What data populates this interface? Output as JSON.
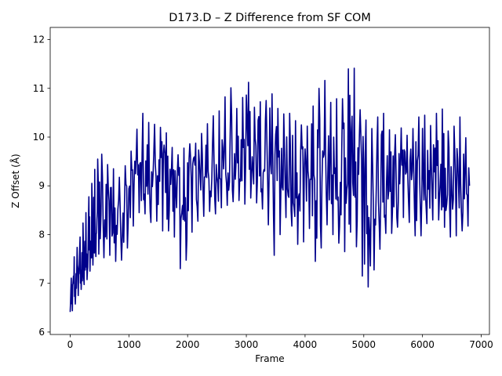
{
  "chart_data": {
    "type": "line",
    "title": "D173.D – Z Difference from SF COM",
    "xlabel": "Frame",
    "ylabel": "Z Offset (Å)",
    "xlim": [
      -340,
      7140
    ],
    "ylim": [
      5.95,
      12.25
    ],
    "xticks": [
      0,
      1000,
      2000,
      3000,
      4000,
      5000,
      6000,
      7000
    ],
    "yticks": [
      6,
      7,
      8,
      9,
      10,
      11,
      12
    ],
    "grid": false,
    "legend": "none",
    "line_color": "#00008b",
    "series": [
      {
        "name": "",
        "x": [
          0,
          50,
          100,
          150,
          200,
          250,
          300,
          350,
          400,
          450,
          500,
          600,
          700,
          800,
          900,
          1000,
          1100,
          1200,
          1300,
          1400,
          1500,
          1600,
          1700,
          1800,
          1900,
          2000,
          2100,
          2200,
          2300,
          2400,
          2500,
          2600,
          2700,
          2800,
          2900,
          3000,
          3100,
          3200,
          3300,
          3400,
          3500,
          3600,
          3700,
          3800,
          3900,
          4000,
          4100,
          4200,
          4300,
          4400,
          4500,
          4600,
          4700,
          4800,
          4900,
          5000,
          5100,
          5200,
          5300,
          5400,
          5500,
          5600,
          5700,
          5800,
          5900,
          6000,
          6100,
          6200,
          6300,
          6400,
          6500,
          6600,
          6700,
          6800
        ],
        "y": [
          6.6,
          7.0,
          7.1,
          7.3,
          7.4,
          7.5,
          7.7,
          7.9,
          8.0,
          8.2,
          8.3,
          8.4,
          8.5,
          8.4,
          8.5,
          8.7,
          9.0,
          9.2,
          9.1,
          9.0,
          9.2,
          9.1,
          9.0,
          8.9,
          8.7,
          8.8,
          9.0,
          9.1,
          9.2,
          9.3,
          9.3,
          9.4,
          9.5,
          9.5,
          9.6,
          9.6,
          9.7,
          9.6,
          9.5,
          9.4,
          9.4,
          9.3,
          9.3,
          9.2,
          9.1,
          9.2,
          9.3,
          9.1,
          9.0,
          9.3,
          9.1,
          9.0,
          9.1,
          9.2,
          9.0,
          8.6,
          8.4,
          8.7,
          8.8,
          8.9,
          9.0,
          9.0,
          9.1,
          9.1,
          9.2,
          9.1,
          9.0,
          9.1,
          9.2,
          9.1,
          9.0,
          9.1,
          9.0,
          9.0
        ],
        "min": [
          6.25,
          6.5,
          6.6,
          6.8,
          6.9,
          7.0,
          7.1,
          7.3,
          7.4,
          7.6,
          7.6,
          7.5,
          7.6,
          7.4,
          7.5,
          7.8,
          8.3,
          8.5,
          8.4,
          8.2,
          8.3,
          8.0,
          8.1,
          7.9,
          7.1,
          7.6,
          8.2,
          8.3,
          8.4,
          8.5,
          8.4,
          8.6,
          8.6,
          8.7,
          8.7,
          8.6,
          8.8,
          8.6,
          8.5,
          8.1,
          7.4,
          8.2,
          8.4,
          8.1,
          7.7,
          7.9,
          8.2,
          7.2,
          7.9,
          8.3,
          7.9,
          7.8,
          7.6,
          8.2,
          7.6,
          7.0,
          6.9,
          7.4,
          7.8,
          8.1,
          8.0,
          8.2,
          8.4,
          8.2,
          7.9,
          8.0,
          8.3,
          8.3,
          8.3,
          8.1,
          7.9,
          8.0,
          8.1,
          8.2
        ],
        "max": [
          6.9,
          7.45,
          7.7,
          7.8,
          8.2,
          8.3,
          8.7,
          8.9,
          9.3,
          9.4,
          9.8,
          9.4,
          9.5,
          9.1,
          9.3,
          9.6,
          9.9,
          10.6,
          10.3,
          10.3,
          10.2,
          10.2,
          9.9,
          9.6,
          9.7,
          9.9,
          9.8,
          10.0,
          10.2,
          10.4,
          10.5,
          10.6,
          11.2,
          10.7,
          10.4,
          11.5,
          10.5,
          10.8,
          10.6,
          11.0,
          10.7,
          10.4,
          10.6,
          10.3,
          10.4,
          10.0,
          10.6,
          10.7,
          11.5,
          10.6,
          10.9,
          10.6,
          11.1,
          11.9,
          10.6,
          10.5,
          10.1,
          10.3,
          10.6,
          10.3,
          9.9,
          10.3,
          10.0,
          10.1,
          10.3,
          10.6,
          10.2,
          10.3,
          10.8,
          10.2,
          10.0,
          10.6,
          10.1,
          9.8
        ]
      }
    ]
  }
}
